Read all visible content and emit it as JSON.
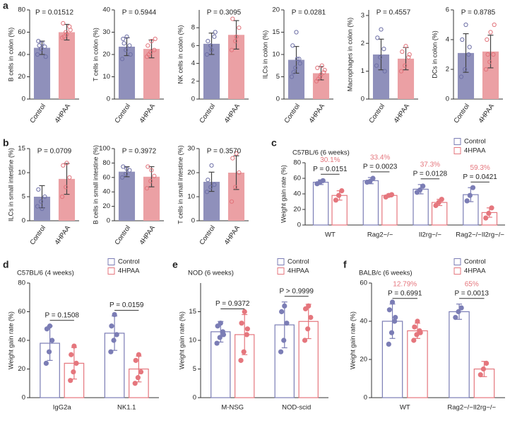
{
  "chart_data": [
    {
      "type": "bar",
      "panel": "a",
      "p_value": "P = 0.01512",
      "ylabel": "B cells in colon (%)",
      "categories": [
        "Control",
        "4HPAA"
      ],
      "values": [
        46,
        60
      ],
      "errors": [
        6,
        7
      ],
      "points": [
        [
          40,
          45,
          47,
          52,
          50,
          38,
          48
        ],
        [
          55,
          60,
          65,
          68,
          58,
          62,
          56
        ]
      ],
      "colors": [
        "#8f90bb",
        "#eba0a4"
      ],
      "point_colors": [
        "#6d6fa6",
        "#e2737b"
      ],
      "ylim": [
        0,
        80
      ],
      "yticks": [
        0,
        20,
        40,
        60,
        80
      ]
    },
    {
      "type": "bar",
      "p_value": "P = 0.5944",
      "ylabel": "T cells in colon (%)",
      "categories": [
        "Control",
        "4HPAA"
      ],
      "values": [
        23.5,
        22.5
      ],
      "errors": [
        4,
        4
      ],
      "points": [
        [
          18,
          22,
          24,
          27,
          28,
          20,
          25
        ],
        [
          19,
          21,
          22,
          24,
          26,
          27,
          20
        ]
      ],
      "colors": [
        "#8f90bb",
        "#eba0a4"
      ],
      "point_colors": [
        "#6d6fa6",
        "#e2737b"
      ],
      "ylim": [
        0,
        40
      ],
      "yticks": [
        0,
        10,
        20,
        30,
        40
      ]
    },
    {
      "type": "bar",
      "p_value": "P = 0.3095",
      "ylabel": "NK cells in colon (%)",
      "categories": [
        "Control",
        "4HPAA"
      ],
      "values": [
        6.2,
        7.2
      ],
      "errors": [
        1.2,
        1.6
      ],
      "points": [
        [
          5,
          6,
          7,
          6.5,
          5.5,
          7.5
        ],
        [
          5.5,
          6.5,
          8,
          9,
          7
        ]
      ],
      "colors": [
        "#8f90bb",
        "#eba0a4"
      ],
      "point_colors": [
        "#6d6fa6",
        "#e2737b"
      ],
      "ylim": [
        0,
        10
      ],
      "yticks": [
        0,
        2,
        4,
        6,
        8
      ]
    },
    {
      "type": "bar",
      "p_value": "P = 0.0281",
      "ylabel": "ILCs in colon (%)",
      "categories": [
        "Control",
        "4HPAA"
      ],
      "values": [
        8.8,
        5.8
      ],
      "errors": [
        3,
        1.5
      ],
      "points": [
        [
          5,
          7,
          9,
          12,
          15,
          8,
          6,
          9
        ],
        [
          4,
          5,
          6,
          7,
          5.5,
          6.5,
          4.5,
          7.5
        ]
      ],
      "colors": [
        "#8f90bb",
        "#eba0a4"
      ],
      "point_colors": [
        "#6d6fa6",
        "#e2737b"
      ],
      "ylim": [
        0,
        20
      ],
      "yticks": [
        0,
        5,
        10,
        15,
        20
      ]
    },
    {
      "type": "bar",
      "p_value": "P = 0.4557",
      "ylabel": "Macrophages in colon (%)",
      "categories": [
        "Control",
        "4HPAA"
      ],
      "values": [
        1.6,
        1.45
      ],
      "errors": [
        0.55,
        0.4
      ],
      "points": [
        [
          1.2,
          1.5,
          1.8,
          2.2,
          2.5,
          1.0
        ],
        [
          1.0,
          1.2,
          1.5,
          1.7,
          1.9,
          1.6
        ]
      ],
      "colors": [
        "#8f90bb",
        "#eba0a4"
      ],
      "point_colors": [
        "#6d6fa6",
        "#e2737b"
      ],
      "ylim": [
        0,
        3.2
      ],
      "yticks": [
        0,
        1,
        2,
        3
      ]
    },
    {
      "type": "bar",
      "p_value": "P = 0.8785",
      "ylabel": "DCs in colon (%)",
      "categories": [
        "Control",
        "4HPAA"
      ],
      "values": [
        3.1,
        3.2
      ],
      "errors": [
        1.3,
        1.1
      ],
      "points": [
        [
          1.5,
          2,
          3,
          4,
          5,
          3.5
        ],
        [
          2,
          2.5,
          3,
          4,
          4.5,
          5,
          3
        ]
      ],
      "colors": [
        "#8f90bb",
        "#eba0a4"
      ],
      "point_colors": [
        "#6d6fa6",
        "#e2737b"
      ],
      "ylim": [
        0,
        6
      ],
      "yticks": [
        0,
        2,
        4,
        6
      ]
    },
    {
      "type": "bar",
      "panel": "b",
      "p_value": "P = 0.0709",
      "ylabel": "ILCs in small intestine (%)",
      "categories": [
        "Control",
        "4HPAA"
      ],
      "values": [
        5,
        8.7
      ],
      "errors": [
        2.3,
        3.2
      ],
      "points": [
        [
          3,
          4,
          5,
          6.5,
          2.5
        ],
        [
          5,
          7,
          9,
          11.5,
          12
        ]
      ],
      "colors": [
        "#8f90bb",
        "#eba0a4"
      ],
      "point_colors": [
        "#6d6fa6",
        "#e2737b"
      ],
      "ylim": [
        0,
        15
      ],
      "yticks": [
        0,
        5,
        10,
        15
      ]
    },
    {
      "type": "bar",
      "p_value": "P = 0.3972",
      "ylabel": "B cells in small intestine (%)",
      "categories": [
        "Control",
        "4HPAA"
      ],
      "values": [
        68,
        61
      ],
      "errors": [
        7,
        14
      ],
      "points": [
        [
          60,
          65,
          70,
          75,
          72
        ],
        [
          45,
          55,
          62,
          75,
          70
        ]
      ],
      "colors": [
        "#8f90bb",
        "#eba0a4"
      ],
      "point_colors": [
        "#6d6fa6",
        "#e2737b"
      ],
      "ylim": [
        0,
        100
      ],
      "yticks": [
        0,
        20,
        40,
        60,
        80,
        100
      ]
    },
    {
      "type": "bar",
      "p_value": "P = 0.3570",
      "ylabel": "T cells in small intestine (%)",
      "categories": [
        "Control",
        "4HPAA"
      ],
      "values": [
        16.2,
        20
      ],
      "errors": [
        4,
        7
      ],
      "points": [
        [
          12,
          14,
          15,
          17,
          23
        ],
        [
          8,
          14,
          20,
          26,
          28
        ]
      ],
      "colors": [
        "#8f90bb",
        "#eba0a4"
      ],
      "point_colors": [
        "#6d6fa6",
        "#e2737b"
      ],
      "ylim": [
        0,
        30
      ],
      "yticks": [
        0,
        10,
        20,
        30
      ]
    },
    {
      "type": "grouped_bar",
      "panel": "c",
      "subtitle": "C57BL/6 (6 weeks)",
      "ylabel": "Weight gain rate (%)",
      "categories": [
        "WT",
        "Rag2−/−",
        "Il2rg−/−",
        "Rag2−/−Il2rg−/−"
      ],
      "series": [
        {
          "name": "Control",
          "color": "#7b7db5",
          "values": [
            55,
            57,
            46,
            39
          ],
          "errors": [
            3,
            4,
            6,
            9
          ],
          "points": [
            [
              53,
              55,
              57
            ],
            [
              55,
              56,
              60
            ],
            [
              42,
              45,
              50
            ],
            [
              31,
              38,
              48
            ]
          ]
        },
        {
          "name": "4HPAA",
          "color": "#e5767d",
          "values": [
            38,
            38,
            29,
            16
          ],
          "errors": [
            6,
            2,
            4,
            6
          ],
          "points": [
            [
              32,
              38,
              44
            ],
            [
              36,
              38,
              39
            ],
            [
              25,
              29,
              33
            ],
            [
              9,
              15,
              22
            ]
          ]
        }
      ],
      "p_values": [
        "P = 0.0151",
        "P = 0.0023",
        "P = 0.0128",
        "P = 0.0421"
      ],
      "change_labels": [
        "30.1%",
        "33.4%",
        "37.3%",
        "59.3%"
      ],
      "change_color": "#e5767d",
      "ylim": [
        0,
        80
      ],
      "yticks": [
        0,
        20,
        40,
        60,
        80
      ]
    },
    {
      "type": "grouped_bar",
      "panel": "d",
      "subtitle": "C57BL/6 (4 weeks)",
      "ylabel": "Weight gain rate (%)",
      "categories": [
        "IgG2a",
        "NK1.1"
      ],
      "series": [
        {
          "name": "Control",
          "color": "#7b7db5",
          "values": [
            38,
            45
          ],
          "errors": [
            12,
            12
          ],
          "points": [
            [
              24,
              32,
              40,
              48,
              50
            ],
            [
              32,
              40,
              44,
              50,
              58
            ]
          ]
        },
        {
          "name": "4HPAA",
          "color": "#e5767d",
          "values": [
            24,
            20
          ],
          "errors": [
            11,
            9
          ],
          "points": [
            [
              12,
              18,
              24,
              30,
              36
            ],
            [
              10,
              14,
              18,
              26,
              30
            ]
          ]
        }
      ],
      "p_values": [
        "P = 0.1508",
        "P = 0.0159"
      ],
      "ylim": [
        0,
        80
      ],
      "yticks": [
        0,
        20,
        40,
        60,
        80
      ]
    },
    {
      "type": "grouped_bar",
      "panel": "e",
      "subtitle": "NOD (6 weeks)",
      "ylabel": "Weight gain rate (%)",
      "categories": [
        "M-NSG",
        "NOD-scid"
      ],
      "series": [
        {
          "name": "Control",
          "color": "#7b7db5",
          "values": [
            11.5,
            12.7
          ],
          "errors": [
            1.8,
            4
          ],
          "points": [
            [
              9.5,
              10.5,
              11.5,
              12.5,
              13,
              11
            ],
            [
              8,
              10,
              13,
              15,
              16
            ]
          ]
        },
        {
          "name": "4HPAA",
          "color": "#e5767d",
          "values": [
            11,
            13.3
          ],
          "errors": [
            3.5,
            3
          ],
          "points": [
            [
              6.5,
              8,
              11,
              13,
              15,
              12
            ],
            [
              10,
              12,
              14,
              15.5,
              16
            ]
          ]
        }
      ],
      "p_values": [
        "P = 0.9372",
        "P > 0.9999"
      ],
      "ylim": [
        0,
        20
      ],
      "yticks": [
        0,
        5,
        10,
        15
      ]
    },
    {
      "type": "grouped_bar",
      "panel": "f",
      "subtitle": "BALB/c (6 weeks)",
      "ylabel": "Weight gain rate (%)",
      "categories": [
        "WT",
        "Rag2−/−Il2rg−/−"
      ],
      "series": [
        {
          "name": "Control",
          "color": "#7b7db5",
          "values": [
            40,
            45
          ],
          "errors": [
            9,
            4
          ],
          "points": [
            [
              28,
              34,
              40,
              46,
              50,
              42
            ],
            [
              42,
              45,
              47
            ]
          ]
        },
        {
          "name": "4HPAA",
          "color": "#e5767d",
          "values": [
            35,
            15
          ],
          "errors": [
            4,
            4
          ],
          "points": [
            [
              30,
              33,
              35,
              37,
              40,
              34
            ],
            [
              12,
              15,
              18
            ]
          ]
        }
      ],
      "p_values": [
        "P = 0.6991",
        "P = 0.0013"
      ],
      "change_labels": [
        "12.79%",
        "65%"
      ],
      "change_color": "#e5767d",
      "ylim": [
        0,
        60
      ],
      "yticks": [
        0,
        20,
        40,
        60
      ]
    }
  ]
}
